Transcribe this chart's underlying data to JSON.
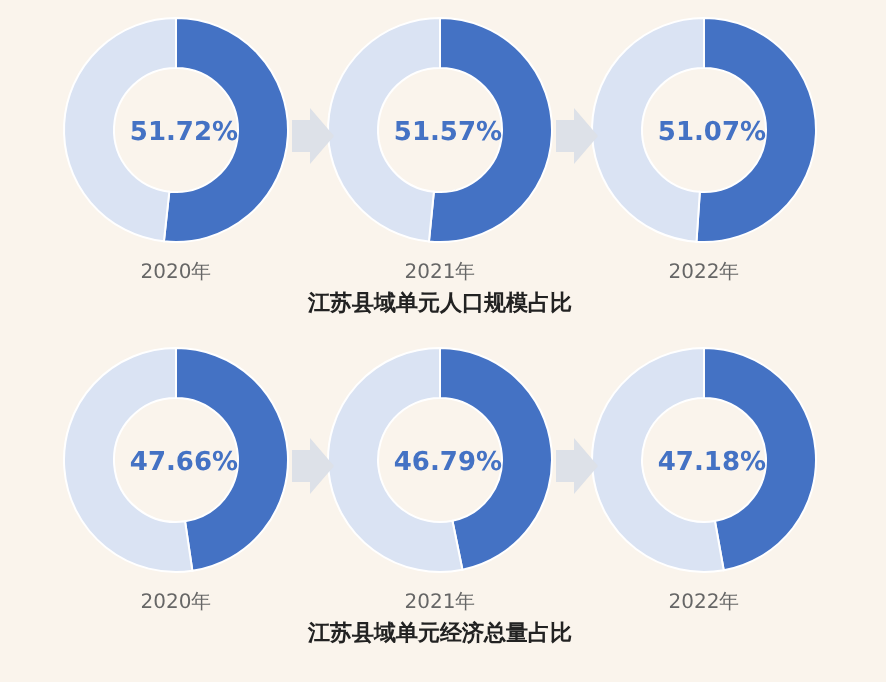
{
  "chart_data": [
    {
      "type": "donut",
      "categories": [
        null,
        null
      ],
      "values": [
        51.72,
        48.28
      ],
      "colors": [
        "#4472c4",
        "#dae3f3"
      ],
      "value_labels": [
        "51.72%",
        null
      ],
      "xlabel": "2020年"
    },
    {
      "type": "donut",
      "categories": [
        null,
        null
      ],
      "values": [
        51.57,
        48.43
      ],
      "colors": [
        "#4472c4",
        "#dae3f3"
      ],
      "value_labels": [
        "51.57%",
        null
      ],
      "xlabel": "2021年",
      "annotations": [
        "江苏县域单元人口规模占比"
      ]
    },
    {
      "type": "donut",
      "categories": [
        null,
        null
      ],
      "values": [
        51.07,
        48.93
      ],
      "colors": [
        "#4472c4",
        "#dae3f3"
      ],
      "value_labels": [
        "51.07%",
        null
      ],
      "xlabel": "2022年"
    },
    {
      "type": "donut",
      "categories": [
        null,
        null
      ],
      "values": [
        47.66,
        52.34
      ],
      "colors": [
        "#4472c4",
        "#dae3f3"
      ],
      "value_labels": [
        "47.66%",
        null
      ],
      "xlabel": "2020年"
    },
    {
      "type": "donut",
      "categories": [
        null,
        null
      ],
      "values": [
        46.79,
        53.21
      ],
      "colors": [
        "#4472c4",
        "#dae3f3"
      ],
      "value_labels": [
        "46.79%",
        null
      ],
      "xlabel": "2021年",
      "annotations": [
        "江苏县域单元经济总量占比"
      ]
    },
    {
      "type": "donut",
      "categories": [
        null,
        null
      ],
      "values": [
        47.18,
        52.82
      ],
      "colors": [
        "#4472c4",
        "#dae3f3"
      ],
      "value_labels": [
        "47.18%",
        null
      ],
      "xlabel": "2022年"
    }
  ]
}
